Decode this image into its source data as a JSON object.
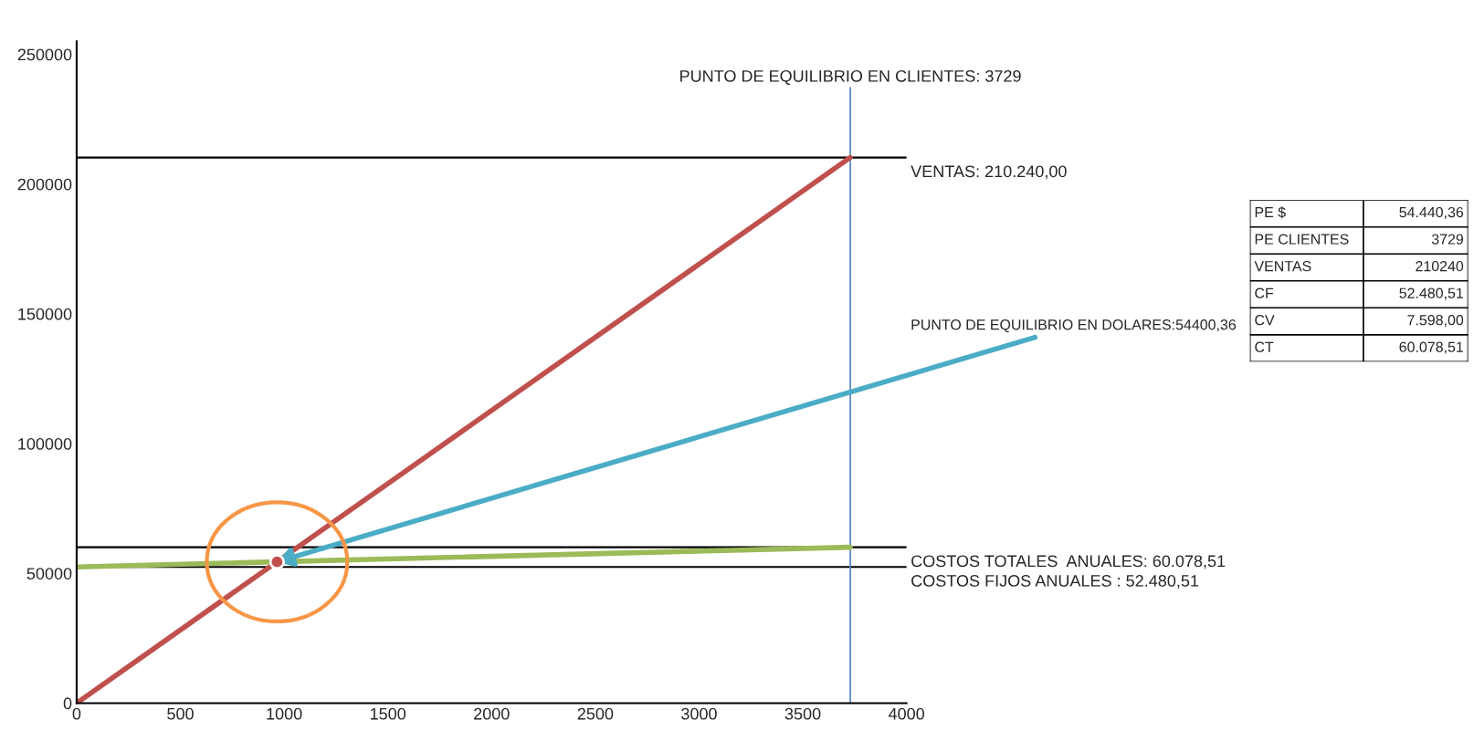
{
  "chart_data": [
    {
      "type": "line",
      "xlim": [
        0,
        4000
      ],
      "ylim": [
        0,
        255000
      ],
      "xticks": [
        0,
        500,
        1000,
        1500,
        2000,
        2500,
        3000,
        3500,
        4000
      ],
      "yticks": [
        0,
        50000,
        100000,
        150000,
        200000,
        250000
      ],
      "series": [
        {
          "color": "#c0504d",
          "x": [
            0,
            3729
          ],
          "values": [
            0,
            210240
          ]
        },
        {
          "color": "#9bbb59",
          "x": [
            0,
            3729
          ],
          "values": [
            52480.51,
            60078.51
          ]
        },
        {
          "type": "scatter",
          "color": "#c0504d",
          "x": [
            966
          ],
          "values": [
            54440.36
          ]
        }
      ],
      "ref_lines": [
        {
          "axis": "y",
          "value": 210240,
          "label": "VENTAS: 210.240,00",
          "color": "#000000"
        },
        {
          "axis": "y",
          "value": 60078.51,
          "label": "COSTOS TOTALES  ANUALES: 60.078,51",
          "color": "#000000"
        },
        {
          "axis": "y",
          "value": 52480.51,
          "label": "COSTOS FIJOS ANUALES : 52.480,51",
          "color": "#000000"
        },
        {
          "axis": "x",
          "value": 3729,
          "label": "PUNTO DE EQUILIBRIO EN CLIENTES: 3729",
          "color": "#4f81bd"
        }
      ],
      "annotations": [
        {
          "text": "PUNTO DE EQUILIBRIO EN DOLARES:54400,36",
          "x": 966,
          "y": 54440.36
        }
      ],
      "grid": false,
      "legend": false
    },
    {
      "type": "other",
      "annotations": [
        "PE $",
        "54.440,36",
        "PE CLIENTES",
        "3729",
        "VENTAS",
        "210240",
        "CF",
        "52.480,51",
        "CV",
        "7.598,00",
        "CT",
        "60.078,51"
      ]
    }
  ]
}
